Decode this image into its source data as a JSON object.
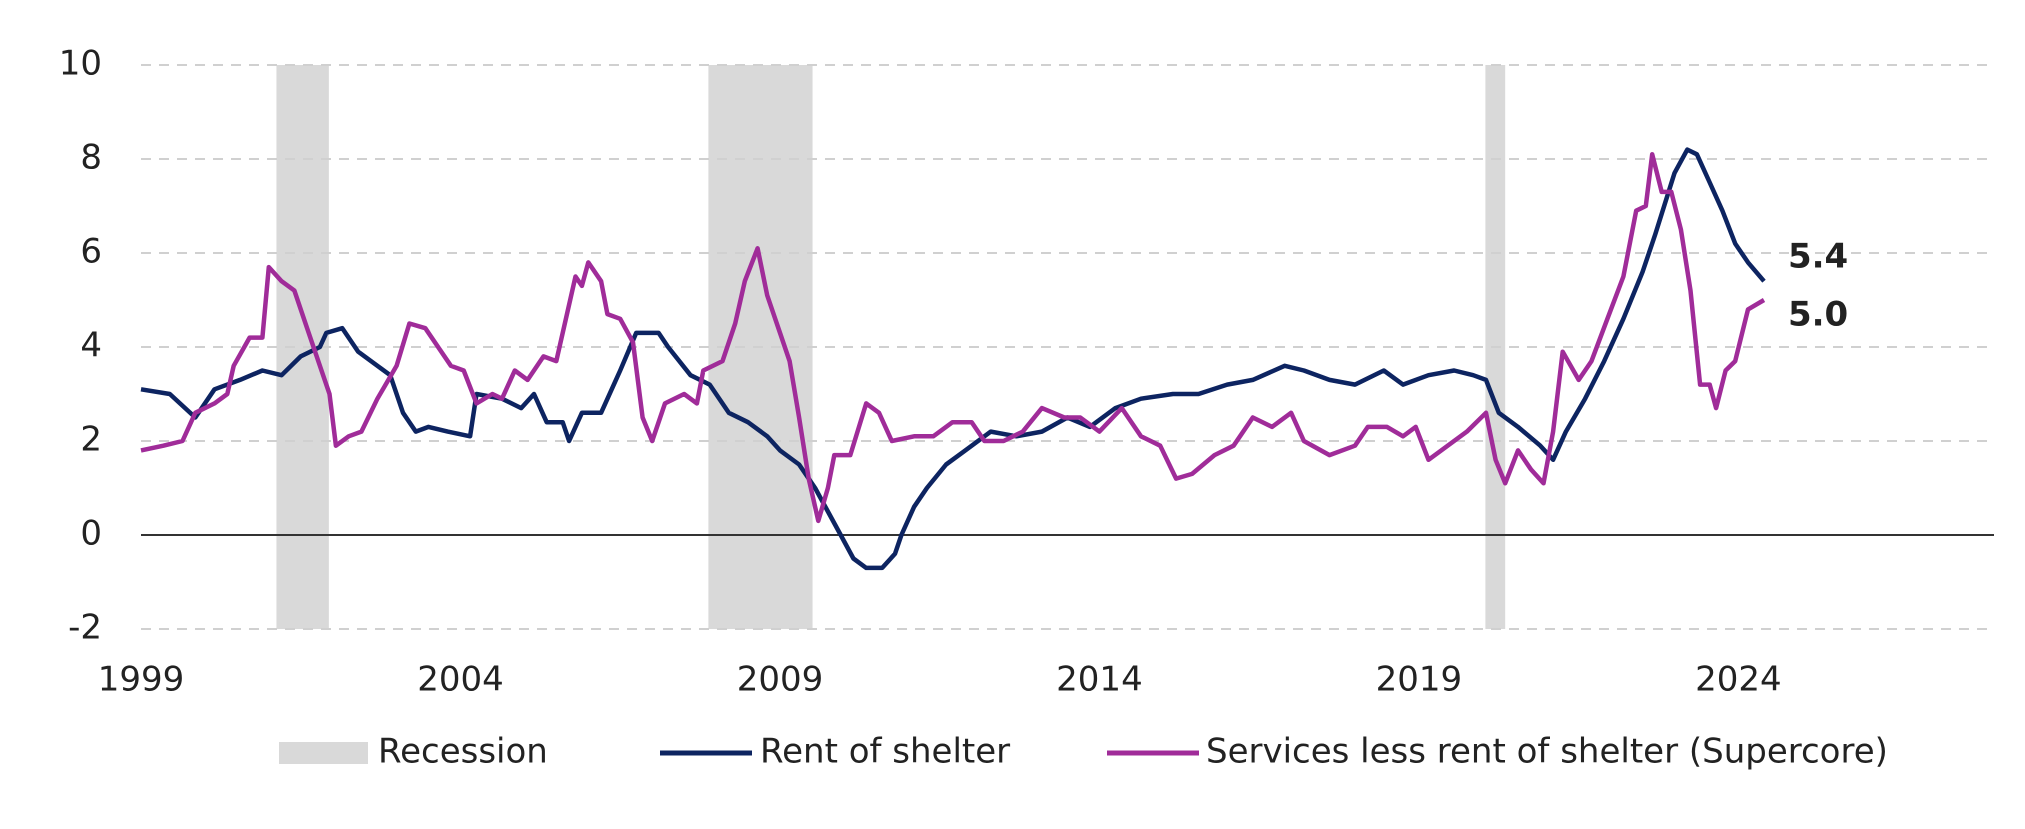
{
  "chart_data": {
    "type": "line",
    "xlim": [
      1999,
      2028
    ],
    "xticks": [
      1999,
      2004,
      2009,
      2014,
      2019,
      2024
    ],
    "ylim": [
      -2,
      10
    ],
    "yticks": [
      -2,
      0,
      2,
      4,
      6,
      8,
      10
    ],
    "grid": true,
    "legend": "bottom",
    "recession": {
      "name": "Recession",
      "color": "#d9d9d9",
      "start": [
        2001.12,
        2007.88,
        2020.04
      ],
      "end": [
        2001.94,
        2009.51,
        2020.35
      ]
    },
    "series": [
      {
        "name": "Rent of shelter",
        "color": "#0d2461",
        "value_labels": [
          "5.4"
        ],
        "x": [
          1999.0,
          1999.45,
          1999.85,
          2000.15,
          2000.55,
          2000.9,
          2001.2,
          2001.5,
          2001.8,
          2001.9,
          2002.15,
          2002.4,
          2002.7,
          2002.9,
          2003.1,
          2003.3,
          2003.5,
          2003.8,
          2004.15,
          2004.25,
          2004.65,
          2004.95,
          2005.15,
          2005.35,
          2005.6,
          2005.7,
          2005.9,
          2006.2,
          2006.5,
          2006.75,
          2007.1,
          2007.25,
          2007.6,
          2007.9,
          2008.2,
          2008.5,
          2008.8,
          2009.0,
          2009.3,
          2009.55,
          2009.75,
          2009.95,
          2010.15,
          2010.35,
          2010.6,
          2010.8,
          2010.9,
          2011.1,
          2011.3,
          2011.6,
          2011.9,
          2012.3,
          2012.7,
          2013.1,
          2013.5,
          2013.85,
          2014.25,
          2014.65,
          2015.15,
          2015.55,
          2016.0,
          2016.4,
          2016.9,
          2017.2,
          2017.6,
          2018.0,
          2018.45,
          2018.75,
          2019.15,
          2019.55,
          2019.85,
          2020.05,
          2020.25,
          2020.55,
          2020.9,
          2021.1,
          2021.3,
          2021.6,
          2021.9,
          2022.2,
          2022.5,
          2022.7,
          2023.0,
          2023.2,
          2023.35,
          2023.55,
          2023.75,
          2023.95,
          2024.15,
          2024.4
        ],
        "values": [
          3.1,
          3.0,
          2.5,
          3.1,
          3.3,
          3.5,
          3.4,
          3.8,
          4.0,
          4.3,
          4.4,
          3.9,
          3.6,
          3.4,
          2.6,
          2.2,
          2.3,
          2.2,
          2.1,
          3.0,
          2.9,
          2.7,
          3.0,
          2.4,
          2.4,
          2.0,
          2.6,
          2.6,
          3.5,
          4.3,
          4.3,
          4.0,
          3.4,
          3.2,
          2.6,
          2.4,
          2.1,
          1.8,
          1.5,
          1.0,
          0.5,
          0.0,
          -0.5,
          -0.7,
          -0.7,
          -0.4,
          0.0,
          0.6,
          1.0,
          1.5,
          1.8,
          2.2,
          2.1,
          2.2,
          2.5,
          2.3,
          2.7,
          2.9,
          3.0,
          3.0,
          3.2,
          3.3,
          3.6,
          3.5,
          3.3,
          3.2,
          3.5,
          3.2,
          3.4,
          3.5,
          3.4,
          3.3,
          2.6,
          2.3,
          1.9,
          1.6,
          2.2,
          2.9,
          3.7,
          4.6,
          5.6,
          6.4,
          7.7,
          8.2,
          8.1,
          7.5,
          6.9,
          6.2,
          5.8,
          5.4
        ]
      },
      {
        "name": "Services less rent of shelter (Supercore)",
        "color": "#a02c99",
        "value_labels": [
          "5.0"
        ],
        "x": [
          1999.0,
          1999.35,
          1999.65,
          1999.85,
          2000.15,
          2000.35,
          2000.45,
          2000.7,
          2000.9,
          2001.0,
          2001.2,
          2001.4,
          2001.6,
          2001.8,
          2001.95,
          2002.05,
          2002.25,
          2002.45,
          2002.7,
          2003.0,
          2003.2,
          2003.45,
          2003.65,
          2003.85,
          2004.05,
          2004.25,
          2004.5,
          2004.65,
          2004.85,
          2005.05,
          2005.3,
          2005.5,
          2005.55,
          2005.8,
          2005.9,
          2006.0,
          2006.2,
          2006.3,
          2006.5,
          2006.7,
          2006.85,
          2007.0,
          2007.2,
          2007.5,
          2007.7,
          2007.8,
          2008.1,
          2008.3,
          2008.45,
          2008.65,
          2008.8,
          2009.0,
          2009.15,
          2009.3,
          2009.45,
          2009.6,
          2009.75,
          2009.85,
          2010.1,
          2010.35,
          2010.55,
          2010.75,
          2011.1,
          2011.4,
          2011.7,
          2012.0,
          2012.2,
          2012.5,
          2012.8,
          2013.1,
          2013.45,
          2013.7,
          2014.0,
          2014.35,
          2014.65,
          2014.95,
          2015.2,
          2015.45,
          2015.8,
          2016.1,
          2016.4,
          2016.7,
          2017.0,
          2017.2,
          2017.6,
          2018.0,
          2018.2,
          2018.5,
          2018.75,
          2018.95,
          2019.15,
          2019.45,
          2019.75,
          2020.05,
          2020.2,
          2020.35,
          2020.55,
          2020.75,
          2020.95,
          2021.1,
          2021.25,
          2021.5,
          2021.7,
          2021.95,
          2022.2,
          2022.4,
          2022.55,
          2022.65,
          2022.8,
          2022.95,
          2023.1,
          2023.25,
          2023.4,
          2023.55,
          2023.65,
          2023.8,
          2023.95,
          2024.15,
          2024.4
        ],
        "values": [
          1.8,
          1.9,
          2.0,
          2.6,
          2.8,
          3.0,
          3.6,
          4.2,
          4.2,
          5.7,
          5.4,
          5.2,
          4.4,
          3.6,
          3.0,
          1.9,
          2.1,
          2.2,
          2.9,
          3.6,
          4.5,
          4.4,
          4.0,
          3.6,
          3.5,
          2.8,
          3.0,
          2.9,
          3.5,
          3.3,
          3.8,
          3.7,
          4.0,
          5.5,
          5.3,
          5.8,
          5.4,
          4.7,
          4.6,
          4.1,
          2.5,
          2.0,
          2.8,
          3.0,
          2.8,
          3.5,
          3.7,
          4.5,
          5.4,
          6.1,
          5.1,
          4.3,
          3.7,
          2.5,
          1.2,
          0.3,
          1.0,
          1.7,
          1.7,
          2.8,
          2.6,
          2.0,
          2.1,
          2.1,
          2.4,
          2.4,
          2.0,
          2.0,
          2.2,
          2.7,
          2.5,
          2.5,
          2.2,
          2.7,
          2.1,
          1.9,
          1.2,
          1.3,
          1.7,
          1.9,
          2.5,
          2.3,
          2.6,
          2.0,
          1.7,
          1.9,
          2.3,
          2.3,
          2.1,
          2.3,
          1.6,
          1.9,
          2.2,
          2.6,
          1.6,
          1.1,
          1.8,
          1.4,
          1.1,
          2.2,
          3.9,
          3.3,
          3.7,
          4.6,
          5.5,
          6.9,
          7.0,
          8.1,
          7.3,
          7.3,
          6.5,
          5.2,
          3.2,
          3.2,
          2.7,
          3.5,
          3.7,
          4.8,
          5.0
        ]
      }
    ]
  }
}
